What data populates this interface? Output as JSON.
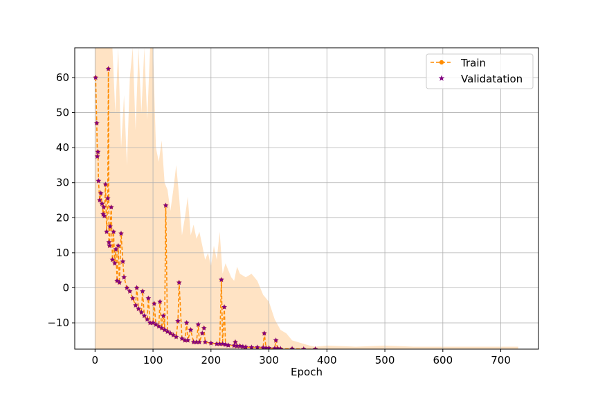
{
  "chart_data": {
    "type": "line",
    "title": "",
    "xlabel": "Epoch",
    "ylabel": "",
    "xlim": [
      -35,
      765
    ],
    "ylim": [
      -17.5,
      68.5
    ],
    "xticks": [
      0,
      100,
      200,
      300,
      400,
      500,
      600,
      700
    ],
    "yticks": [
      -10,
      0,
      10,
      20,
      30,
      40,
      50,
      60
    ],
    "grid": true,
    "legend_position": "top-right",
    "colors": {
      "train": "#ff8c00",
      "validation": "#800080",
      "band": "#ffdab0"
    },
    "series": [
      {
        "name": "Train",
        "style": "dashed line with circle markers",
        "x": [
          1,
          3,
          4,
          5,
          6,
          8,
          10,
          12,
          14,
          15,
          16,
          18,
          20,
          22,
          23,
          24,
          25,
          26,
          28,
          30,
          32,
          34,
          36,
          38,
          40,
          42,
          45,
          48,
          50,
          55,
          60,
          65,
          70,
          72,
          75,
          80,
          82,
          85,
          90,
          92,
          95,
          100,
          102,
          105,
          110,
          112,
          115,
          118,
          120,
          122,
          125,
          130,
          135,
          140,
          143,
          145,
          150,
          155,
          158,
          160,
          165,
          170,
          175,
          178,
          180,
          185,
          188,
          190,
          200,
          210,
          215,
          218,
          220,
          223,
          225,
          230,
          240,
          242,
          245,
          250,
          255,
          260,
          270,
          280,
          290,
          292,
          295,
          300,
          310,
          312,
          315,
          320,
          340,
          360,
          380
        ],
        "values": [
          60,
          47,
          37.5,
          38.8,
          30.5,
          25,
          27,
          24,
          21,
          23,
          20.5,
          29.5,
          16,
          25.5,
          62.5,
          13,
          12,
          17.5,
          23,
          8,
          16,
          7,
          11,
          2,
          12,
          1.5,
          15.5,
          7.5,
          3,
          0,
          -1,
          -3,
          -5,
          0,
          -6,
          -7,
          -1,
          -8,
          -9,
          -3,
          -10,
          -10,
          -4.5,
          -10.5,
          -11,
          -4,
          -11.5,
          -8,
          -12,
          23.5,
          -12.5,
          -13,
          -13.5,
          -14,
          -9.5,
          1.5,
          -14.5,
          -15,
          -10,
          -15,
          -12,
          -15.5,
          -15.5,
          -10.5,
          -15.5,
          -13,
          -11.5,
          -15.5,
          -15.8,
          -16,
          -16,
          2.3,
          -16,
          -5.5,
          -16.2,
          -16.4,
          -16.5,
          -15.5,
          -16.6,
          -16.6,
          -16.8,
          -16.9,
          -17,
          -17,
          -17.1,
          -13,
          -17.2,
          -17.2,
          -17.3,
          -15,
          -17.3,
          -17.4,
          -17.4,
          -17.5,
          -17.5
        ]
      },
      {
        "name": "Validatation",
        "style": "star markers",
        "x": [
          1,
          3,
          4,
          5,
          6,
          8,
          10,
          12,
          14,
          15,
          16,
          18,
          20,
          22,
          23,
          24,
          25,
          26,
          28,
          30,
          32,
          34,
          36,
          38,
          40,
          42,
          45,
          48,
          50,
          55,
          60,
          65,
          70,
          72,
          75,
          80,
          82,
          85,
          90,
          92,
          95,
          100,
          102,
          105,
          110,
          112,
          115,
          118,
          120,
          122,
          125,
          130,
          135,
          140,
          143,
          145,
          150,
          155,
          158,
          160,
          165,
          170,
          175,
          178,
          180,
          185,
          188,
          190,
          200,
          210,
          215,
          218,
          220,
          223,
          225,
          230,
          240,
          242,
          245,
          250,
          255,
          260,
          270,
          280,
          290,
          292,
          295,
          300,
          310,
          312,
          315,
          320,
          340,
          360,
          380
        ],
        "values": [
          60,
          47,
          37.5,
          38.8,
          30.5,
          25,
          27,
          24,
          21,
          23,
          20.5,
          29.5,
          16,
          25.5,
          62.5,
          13,
          12,
          17.5,
          23,
          8,
          16,
          7,
          11,
          2,
          12,
          1.5,
          15.5,
          7.5,
          3,
          0,
          -1,
          -3,
          -5,
          0,
          -6,
          -7,
          -1,
          -8,
          -9,
          -3,
          -10,
          -10,
          -4.5,
          -10.5,
          -11,
          -4,
          -11.5,
          -8,
          -12,
          23.5,
          -12.5,
          -13,
          -13.5,
          -14,
          -9.5,
          1.5,
          -14.5,
          -15,
          -10,
          -15,
          -12,
          -15.5,
          -15.5,
          -10.5,
          -15.5,
          -13,
          -11.5,
          -15.5,
          -15.8,
          -16,
          -16,
          2.3,
          -16,
          -5.5,
          -16.2,
          -16.4,
          -16.5,
          -15.5,
          -16.6,
          -16.6,
          -16.8,
          -16.9,
          -17,
          -17,
          -17.1,
          -13,
          -17.2,
          -17.2,
          -17.3,
          -15,
          -17.3,
          -17.4,
          -17.4,
          -17.5,
          -17.5
        ]
      }
    ],
    "band": {
      "x": [
        0,
        5,
        10,
        15,
        20,
        25,
        30,
        35,
        40,
        45,
        50,
        55,
        60,
        65,
        70,
        75,
        80,
        85,
        90,
        95,
        100,
        105,
        110,
        115,
        120,
        125,
        130,
        135,
        140,
        145,
        150,
        155,
        160,
        165,
        170,
        175,
        180,
        185,
        190,
        195,
        200,
        205,
        210,
        215,
        220,
        225,
        230,
        235,
        240,
        245,
        250,
        260,
        270,
        280,
        290,
        300,
        310,
        320,
        330,
        340,
        350,
        360,
        370,
        380,
        400,
        450,
        500,
        550,
        600,
        650,
        700,
        730
      ],
      "upper": [
        68.5,
        68.5,
        68.5,
        68.5,
        68.5,
        68.5,
        68.5,
        50,
        68.5,
        40,
        55,
        35,
        60,
        68.5,
        45,
        68.5,
        50,
        68.5,
        48,
        68.5,
        68.5,
        40,
        36,
        42,
        30,
        28,
        22,
        28,
        35,
        26,
        15,
        20,
        26,
        15,
        18,
        14,
        16,
        12,
        8,
        10,
        6,
        12,
        8,
        16,
        4,
        7,
        5,
        3,
        2,
        6,
        4,
        3,
        4,
        2,
        -2,
        -4,
        -9,
        -12,
        -13,
        -15,
        -15.5,
        -16,
        -16.5,
        -16.8,
        -16.5,
        -16.8,
        -16.5,
        -16.8,
        -16.8,
        -16.8,
        -16.8,
        -16.8
      ],
      "lower": [
        -17.5,
        -17.5,
        -17.5,
        -17.5,
        -17.5,
        -17.5,
        -17.5,
        -17.5,
        -17.5,
        -17.5,
        -17.5,
        -17.5,
        -17.5,
        -17.5,
        -17.5,
        -17.5,
        -17.5,
        -17.5,
        -17.5,
        -17.5,
        -17.5,
        -17.5,
        -17.5,
        -17.5,
        -17.5,
        -17.5,
        -17.5,
        -17.5,
        -17.5,
        -17.5,
        -17.5,
        -17.5,
        -17.5,
        -17.5,
        -17.5,
        -17.5,
        -17.5,
        -17.5,
        -17.5,
        -17.5,
        -17.5,
        -17.5,
        -17.5,
        -17.5,
        -17.5,
        -17.5,
        -17.5,
        -17.5,
        -17.5,
        -17.5,
        -17.5,
        -17.5,
        -17.5,
        -17.5,
        -17.5,
        -17.5,
        -17.5,
        -17.5,
        -17.5,
        -17.5,
        -17.5,
        -17.5,
        -17.5,
        -17.5,
        -17.5,
        -17.5,
        -17.5,
        -17.5,
        -17.5,
        -17.5,
        -17.5,
        -17.5
      ]
    }
  }
}
